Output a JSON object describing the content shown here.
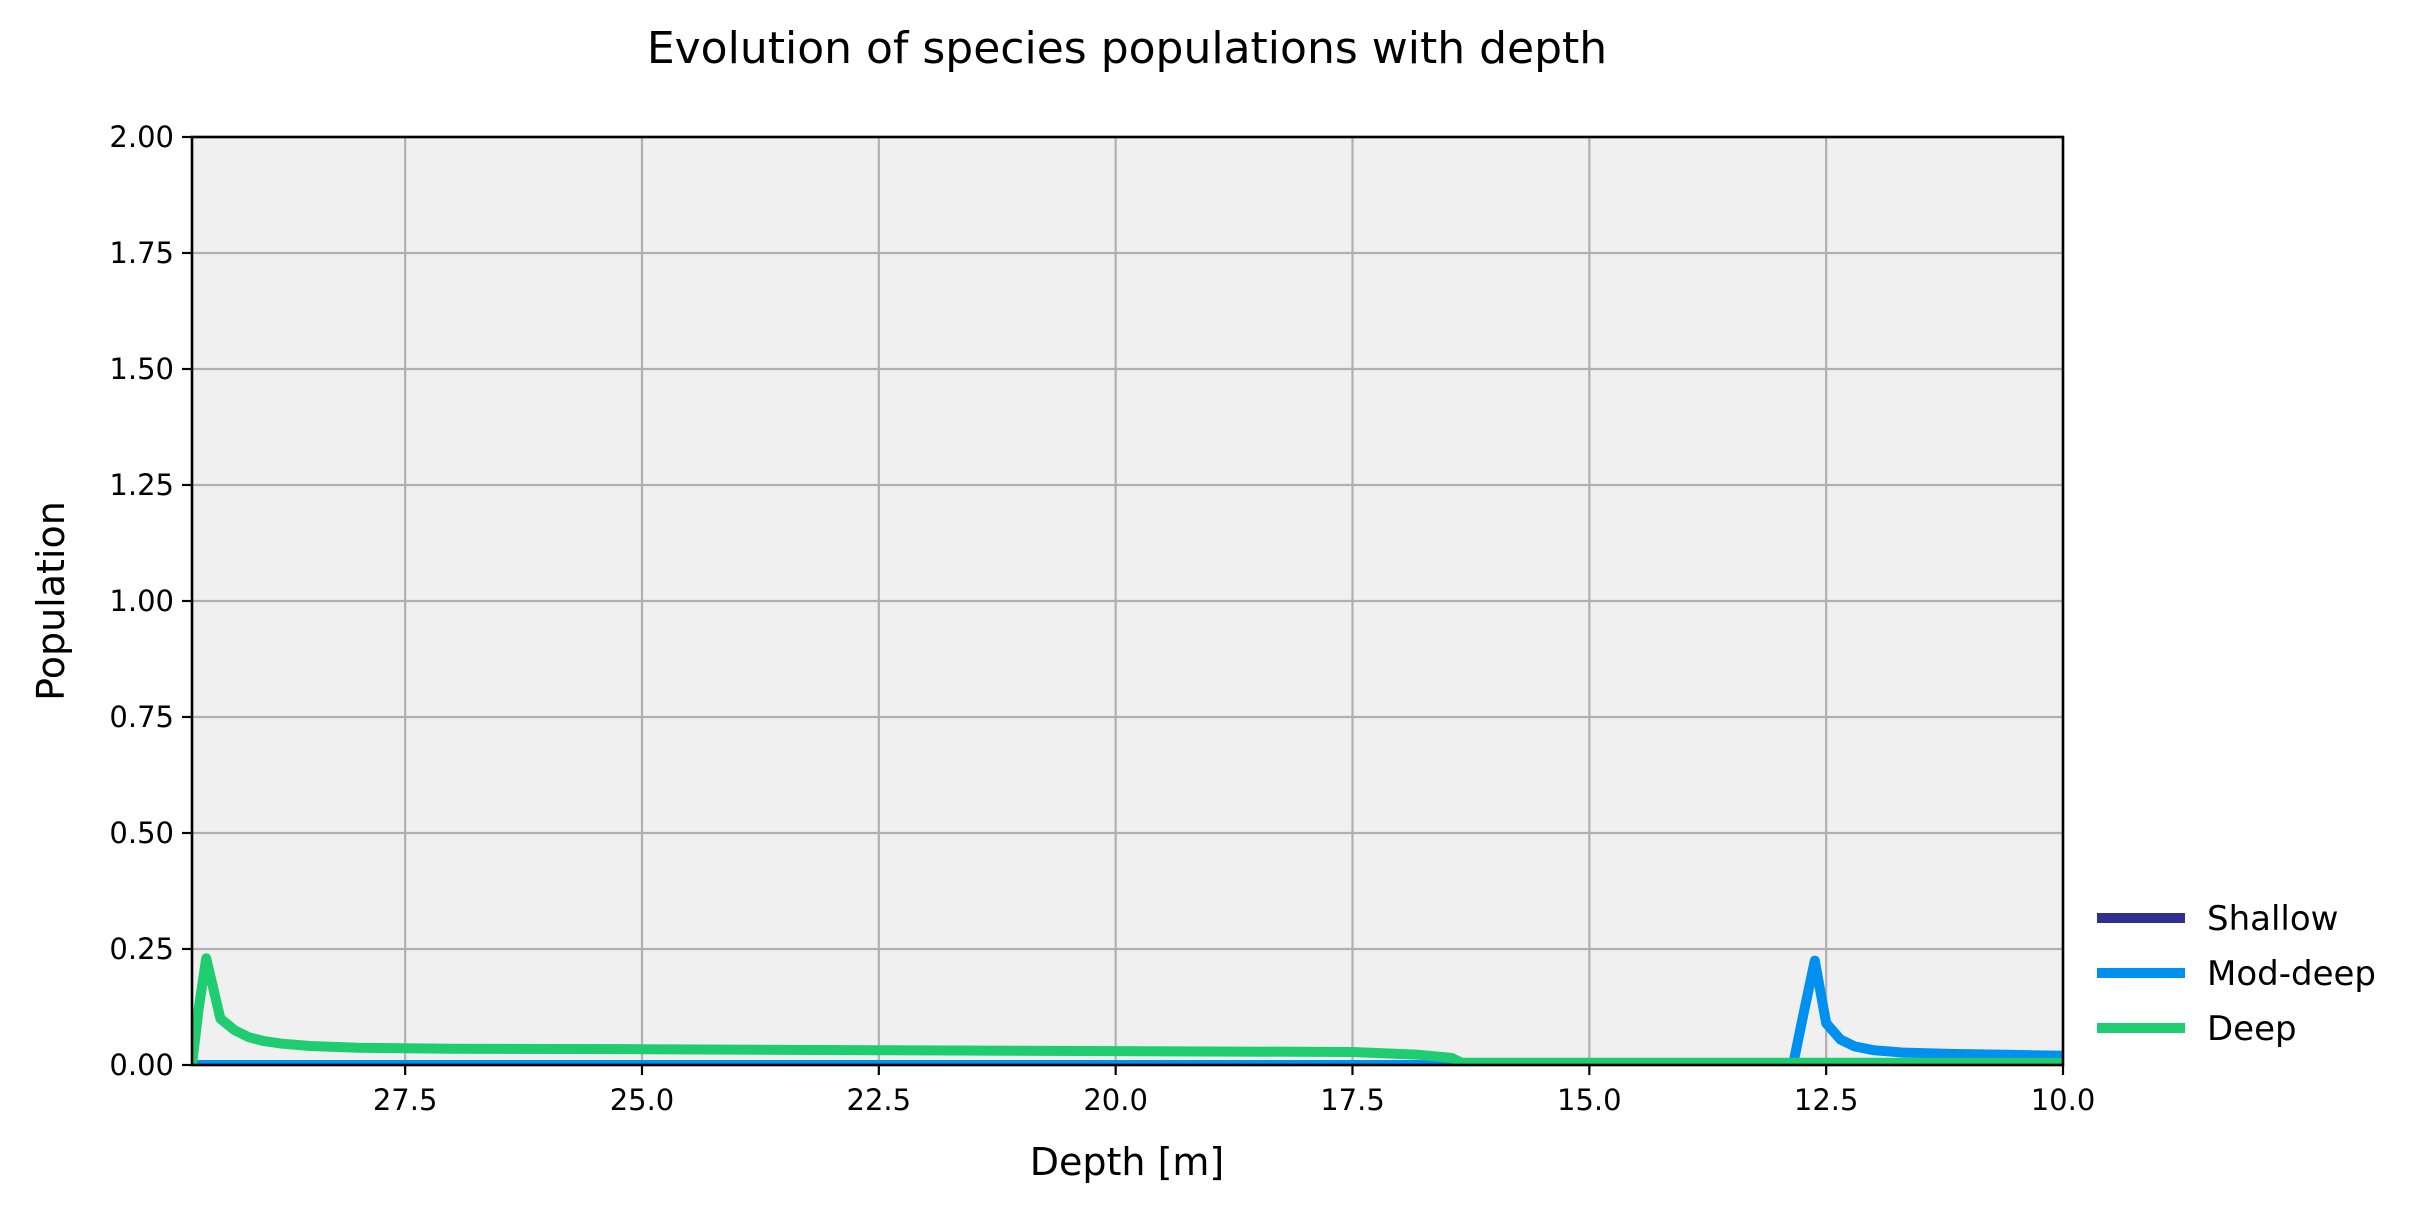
{
  "chart_data": {
    "type": "line",
    "title": "Evolution of species populations with depth",
    "xlabel": "Depth [m]",
    "ylabel": "Population",
    "xlim": [
      29.75,
      10.0
    ],
    "ylim": [
      0.0,
      2.0
    ],
    "x_inverted": true,
    "xticks": [
      27.5,
      25.0,
      22.5,
      20.0,
      17.5,
      15.0,
      12.5,
      10.0
    ],
    "xtick_labels": [
      "27.5",
      "25.0",
      "22.5",
      "20.0",
      "17.5",
      "15.0",
      "12.5",
      "10.0"
    ],
    "yticks": [
      0.0,
      0.25,
      0.5,
      0.75,
      1.0,
      1.25,
      1.5,
      1.75,
      2.0
    ],
    "ytick_labels": [
      "0.00",
      "0.25",
      "0.50",
      "0.75",
      "1.00",
      "1.25",
      "1.50",
      "1.75",
      "2.00"
    ],
    "grid": true,
    "plot_background": "#f0f0f0",
    "legend_position": "outside-lower-right",
    "series": [
      {
        "name": "Shallow",
        "color": "#2e3192",
        "x": [
          29.75,
          10.0
        ],
        "y": [
          0.0,
          0.0
        ]
      },
      {
        "name": "Mod-deep",
        "color": "#0090f0",
        "x": [
          29.75,
          12.85,
          12.75,
          12.62,
          12.5,
          12.35,
          12.2,
          12.0,
          11.7,
          11.2,
          10.6,
          10.0
        ],
        "y": [
          0.0,
          0.0,
          0.1,
          0.225,
          0.09,
          0.055,
          0.04,
          0.032,
          0.027,
          0.024,
          0.022,
          0.02
        ]
      },
      {
        "name": "Deep",
        "color": "#1fcc70",
        "x": [
          29.75,
          29.68,
          29.6,
          29.45,
          29.3,
          29.15,
          29.0,
          28.8,
          28.5,
          28.0,
          27.0,
          25.0,
          22.5,
          20.0,
          17.5,
          16.8,
          16.45,
          16.35,
          12.85,
          10.0
        ],
        "y": [
          0.0,
          0.12,
          0.23,
          0.1,
          0.075,
          0.06,
          0.052,
          0.046,
          0.041,
          0.037,
          0.035,
          0.034,
          0.032,
          0.03,
          0.028,
          0.022,
          0.015,
          0.005,
          0.005,
          0.005
        ]
      }
    ]
  }
}
